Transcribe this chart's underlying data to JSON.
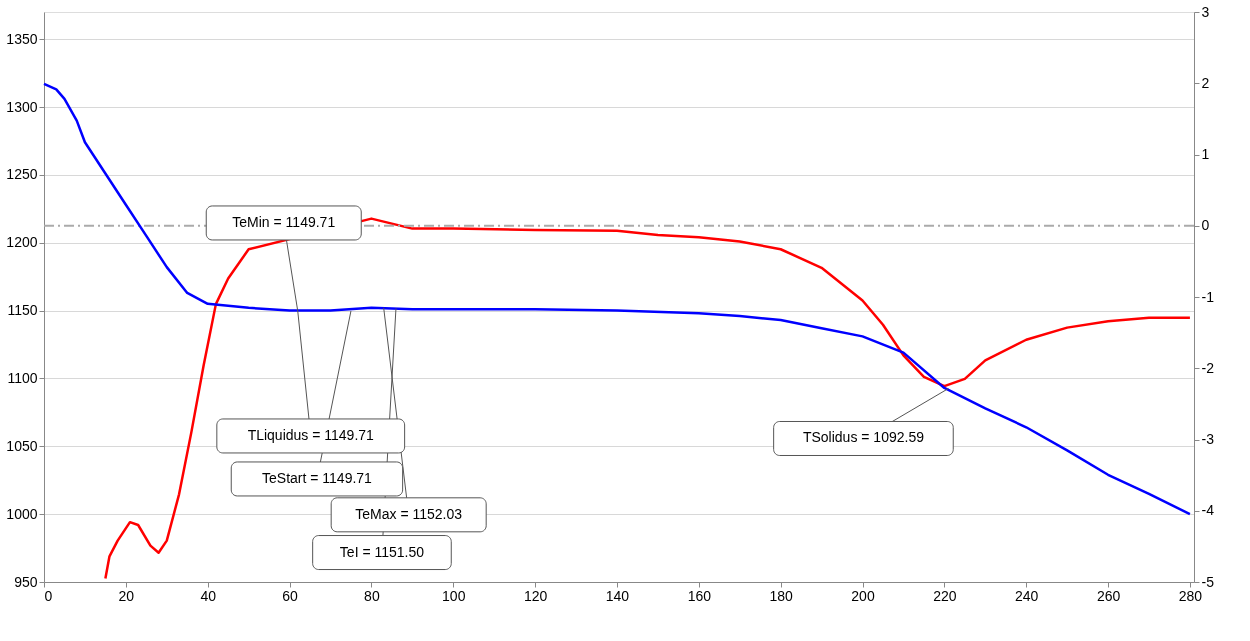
{
  "chart_data": {
    "type": "line",
    "xlim": [
      0,
      281
    ],
    "xticks": [
      0,
      20,
      40,
      60,
      80,
      100,
      120,
      140,
      160,
      180,
      200,
      220,
      240,
      260,
      280
    ],
    "ylim": [
      950,
      1370
    ],
    "yticks": [
      950,
      1000,
      1050,
      1100,
      1150,
      1200,
      1250,
      1300,
      1350
    ],
    "y2lim": [
      -5,
      3
    ],
    "y2ticks": [
      -5,
      -4,
      -3,
      -2,
      -1,
      0,
      1,
      2,
      3
    ],
    "grid": "y",
    "series": [
      {
        "color": "#0000ff",
        "x": [
          0,
          3,
          5,
          8,
          10,
          15,
          20,
          25,
          30,
          35,
          40,
          50,
          60,
          70,
          80,
          90,
          100,
          120,
          140,
          160,
          170,
          180,
          190,
          200,
          210,
          220,
          230,
          240,
          250,
          260,
          270,
          280
        ],
        "values": [
          1317,
          1313,
          1306,
          1290,
          1274,
          1251,
          1228,
          1205,
          1182,
          1163,
          1155,
          1152,
          1150,
          1150,
          1152,
          1151,
          1151,
          1151,
          1150,
          1148,
          1146,
          1143,
          1137,
          1131,
          1119,
          1093,
          1078,
          1064,
          1047,
          1029,
          1015,
          1000
        ]
      },
      {
        "color": "#ff0000",
        "axis": "y2",
        "x": [
          15,
          16,
          18,
          21,
          23,
          26,
          28,
          30,
          33,
          36,
          39,
          42,
          45,
          50,
          80,
          90,
          100,
          120,
          140,
          150,
          160,
          170,
          180,
          190,
          200,
          205,
          210,
          215,
          220,
          225,
          230,
          240,
          250,
          260,
          270,
          280
        ],
        "values": [
          -4.95,
          -4.64,
          -4.42,
          -4.16,
          -4.2,
          -4.49,
          -4.59,
          -4.42,
          -3.77,
          -2.9,
          -1.96,
          -1.1,
          -0.74,
          -0.33,
          0.1,
          -0.04,
          -0.04,
          -0.06,
          -0.07,
          -0.13,
          -0.16,
          -0.22,
          -0.33,
          -0.59,
          -1.05,
          -1.39,
          -1.82,
          -2.12,
          -2.25,
          -2.15,
          -1.89,
          -1.6,
          -1.43,
          -1.34,
          -1.29,
          -1.29
        ]
      }
    ],
    "ref_lines": [
      {
        "axis": "y2",
        "value": 0,
        "color": "#aaaaaa",
        "line_style": "dashed"
      }
    ],
    "annotations": [
      {
        "text": "TeMin = 1149.71",
        "x": 62,
        "y": 1149.71
      },
      {
        "text": "TLiquidus = 1149.71",
        "x": 62,
        "y": 1149.71
      },
      {
        "text": "TeStart = 1149.71",
        "x": 75,
        "y": 1149.71
      },
      {
        "text": "TeMax = 1152.03",
        "x": 83,
        "y": 1152.03
      },
      {
        "text": "TeI = 1151.50",
        "x": 86,
        "y": 1151.5
      },
      {
        "text": "TSolidus = 1092.59",
        "x": 221,
        "y": 1092.59
      }
    ]
  }
}
